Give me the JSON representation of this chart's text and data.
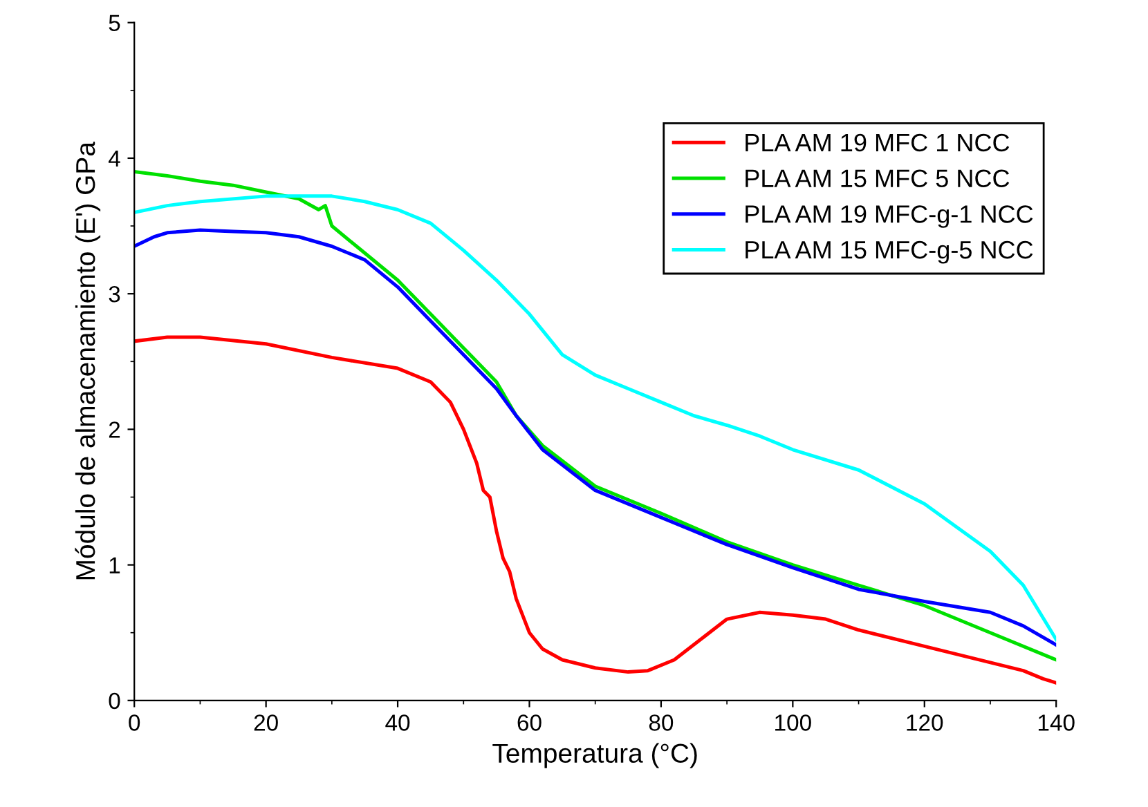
{
  "chart_data": {
    "type": "line",
    "xlabel": "Temperatura (°C)",
    "ylabel": "Módulo de almacenamiento (E') GPa",
    "xlim": [
      0,
      140
    ],
    "xticks": [
      0,
      20,
      40,
      60,
      80,
      100,
      120,
      140
    ],
    "ylim": [
      0,
      5
    ],
    "yticks": [
      0,
      1,
      2,
      3,
      4,
      5
    ],
    "grid": false,
    "legend": "top right",
    "marker": "none",
    "line_style": "solid",
    "series": [
      {
        "name": "PLA AM 19 MFC 1 NCC",
        "color": "#ff0000",
        "x": [
          0,
          5,
          10,
          20,
          30,
          40,
          45,
          48,
          50,
          52,
          53,
          54,
          55,
          56,
          57,
          58,
          60,
          62,
          65,
          70,
          75,
          78,
          82,
          86,
          90,
          95,
          100,
          105,
          110,
          120,
          130,
          135,
          138,
          140
        ],
        "values": [
          2.65,
          2.68,
          2.68,
          2.63,
          2.53,
          2.45,
          2.35,
          2.2,
          2.0,
          1.75,
          1.55,
          1.5,
          1.25,
          1.05,
          0.95,
          0.75,
          0.5,
          0.38,
          0.3,
          0.24,
          0.21,
          0.22,
          0.3,
          0.45,
          0.6,
          0.65,
          0.63,
          0.6,
          0.52,
          0.4,
          0.28,
          0.22,
          0.16,
          0.13
        ]
      },
      {
        "name": "PLA AM 15 MFC 5 NCC",
        "color": "#00e000",
        "x": [
          0,
          5,
          10,
          15,
          20,
          25,
          28,
          29,
          30,
          35,
          40,
          45,
          50,
          55,
          58,
          62,
          70,
          80,
          90,
          100,
          110,
          120,
          130,
          140
        ],
        "values": [
          3.9,
          3.87,
          3.83,
          3.8,
          3.75,
          3.7,
          3.62,
          3.65,
          3.5,
          3.3,
          3.1,
          2.85,
          2.6,
          2.35,
          2.1,
          1.88,
          1.58,
          1.38,
          1.17,
          1.0,
          0.85,
          0.7,
          0.5,
          0.3
        ]
      },
      {
        "name": "PLA AM 19 MFC-g-1 NCC",
        "color": "#0000ff",
        "x": [
          0,
          3,
          5,
          10,
          15,
          20,
          25,
          30,
          35,
          40,
          45,
          50,
          55,
          58,
          62,
          70,
          80,
          90,
          100,
          110,
          120,
          130,
          135,
          140
        ],
        "values": [
          3.35,
          3.42,
          3.45,
          3.47,
          3.46,
          3.45,
          3.42,
          3.35,
          3.25,
          3.05,
          2.8,
          2.55,
          2.3,
          2.1,
          1.85,
          1.55,
          1.35,
          1.15,
          0.98,
          0.82,
          0.73,
          0.65,
          0.55,
          0.41
        ]
      },
      {
        "name": "PLA AM 15 MFC-g-5 NCC",
        "color": "#00ffff",
        "x": [
          0,
          5,
          10,
          20,
          30,
          35,
          40,
          45,
          48,
          50,
          55,
          60,
          65,
          70,
          75,
          80,
          85,
          90,
          95,
          100,
          110,
          120,
          130,
          135,
          140
        ],
        "values": [
          3.6,
          3.65,
          3.68,
          3.72,
          3.72,
          3.68,
          3.62,
          3.52,
          3.4,
          3.32,
          3.1,
          2.85,
          2.55,
          2.4,
          2.3,
          2.2,
          2.1,
          2.03,
          1.95,
          1.85,
          1.7,
          1.45,
          1.1,
          0.85,
          0.45
        ]
      }
    ]
  }
}
